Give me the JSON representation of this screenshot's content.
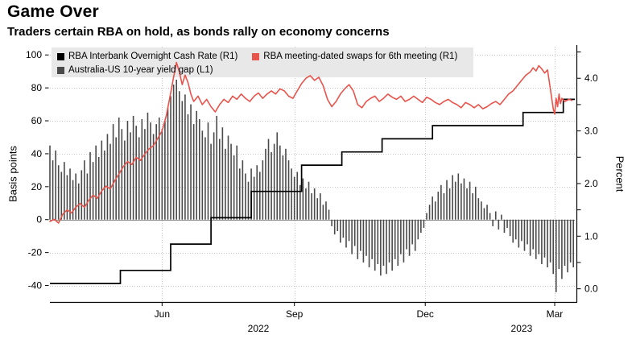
{
  "chart_data": {
    "type": "mixed",
    "title": "Game Over",
    "subtitle": "Traders certain RBA on hold, as bonds rally on economy concerns",
    "legend_position": "top-left",
    "grid": "dotted",
    "background": "#ffffff",
    "x_axis": {
      "tick_labels": [
        "Jun",
        "Sep",
        "Dec",
        "Mar"
      ],
      "tick_days": [
        78,
        170,
        261,
        351
      ],
      "year_labels": [
        {
          "label": "2022",
          "day": 145
        },
        {
          "label": "2023",
          "day": 328
        }
      ],
      "domain_days": [
        0,
        365
      ],
      "domain_note": "day 0 = mid-March 2022, day 365 = mid-March 2023"
    },
    "left_axis": {
      "label": "Basis points",
      "ticks": [
        100,
        80,
        60,
        40,
        20,
        0,
        -20,
        -40
      ],
      "range": [
        -50,
        105
      ]
    },
    "right_axis": {
      "label": "Percent",
      "ticks": [
        4.0,
        3.0,
        2.0,
        1.0,
        0.0
      ],
      "minor_step": 0.5,
      "range": [
        -0.25,
        4.6
      ]
    },
    "series": [
      {
        "name": "RBA Interbank Overnight Cash Rate (R1)",
        "type": "step",
        "axis": "right",
        "color": "#000000",
        "points": [
          [
            0,
            0.1
          ],
          [
            49,
            0.35
          ],
          [
            84,
            0.85
          ],
          [
            112,
            1.35
          ],
          [
            140,
            1.85
          ],
          [
            175,
            2.35
          ],
          [
            203,
            2.6
          ],
          [
            231,
            2.85
          ],
          [
            266,
            3.1
          ],
          [
            329,
            3.35
          ],
          [
            357,
            3.6
          ],
          [
            365,
            3.6
          ]
        ]
      },
      {
        "name": "RBA meeting-dated swaps for 6th meeting (R1)",
        "type": "line",
        "axis": "right",
        "color": "#e8544c",
        "points": [
          [
            0,
            1.28
          ],
          [
            3,
            1.32
          ],
          [
            6,
            1.25
          ],
          [
            9,
            1.42
          ],
          [
            12,
            1.5
          ],
          [
            15,
            1.44
          ],
          [
            18,
            1.55
          ],
          [
            21,
            1.62
          ],
          [
            24,
            1.55
          ],
          [
            27,
            1.68
          ],
          [
            30,
            1.78
          ],
          [
            33,
            1.72
          ],
          [
            36,
            1.86
          ],
          [
            39,
            1.95
          ],
          [
            42,
            1.9
          ],
          [
            45,
            2.05
          ],
          [
            48,
            2.18
          ],
          [
            51,
            2.32
          ],
          [
            54,
            2.42
          ],
          [
            57,
            2.36
          ],
          [
            60,
            2.5
          ],
          [
            63,
            2.44
          ],
          [
            66,
            2.56
          ],
          [
            69,
            2.66
          ],
          [
            72,
            2.72
          ],
          [
            75,
            2.86
          ],
          [
            78,
            3.0
          ],
          [
            81,
            3.3
          ],
          [
            84,
            3.72
          ],
          [
            86,
            4.02
          ],
          [
            88,
            4.3
          ],
          [
            90,
            4.12
          ],
          [
            92,
            3.88
          ],
          [
            94,
            4.06
          ],
          [
            96,
            3.92
          ],
          [
            98,
            3.7
          ],
          [
            100,
            3.56
          ],
          [
            103,
            3.66
          ],
          [
            106,
            3.5
          ],
          [
            109,
            3.6
          ],
          [
            112,
            3.46
          ],
          [
            115,
            3.36
          ],
          [
            118,
            3.5
          ],
          [
            121,
            3.6
          ],
          [
            124,
            3.54
          ],
          [
            127,
            3.66
          ],
          [
            130,
            3.6
          ],
          [
            133,
            3.7
          ],
          [
            136,
            3.62
          ],
          [
            139,
            3.56
          ],
          [
            142,
            3.66
          ],
          [
            145,
            3.72
          ],
          [
            148,
            3.62
          ],
          [
            151,
            3.7
          ],
          [
            154,
            3.76
          ],
          [
            157,
            3.7
          ],
          [
            160,
            3.8
          ],
          [
            163,
            3.76
          ],
          [
            166,
            3.66
          ],
          [
            169,
            3.62
          ],
          [
            172,
            3.76
          ],
          [
            175,
            3.9
          ],
          [
            178,
            4.0
          ],
          [
            181,
            4.05
          ],
          [
            184,
            3.96
          ],
          [
            187,
            4.02
          ],
          [
            190,
            3.86
          ],
          [
            193,
            3.6
          ],
          [
            196,
            3.46
          ],
          [
            199,
            3.56
          ],
          [
            202,
            3.7
          ],
          [
            205,
            3.8
          ],
          [
            208,
            3.88
          ],
          [
            211,
            3.76
          ],
          [
            214,
            3.5
          ],
          [
            217,
            3.44
          ],
          [
            220,
            3.56
          ],
          [
            223,
            3.62
          ],
          [
            226,
            3.66
          ],
          [
            229,
            3.56
          ],
          [
            232,
            3.62
          ],
          [
            235,
            3.7
          ],
          [
            238,
            3.64
          ],
          [
            241,
            3.6
          ],
          [
            244,
            3.66
          ],
          [
            247,
            3.56
          ],
          [
            250,
            3.6
          ],
          [
            253,
            3.66
          ],
          [
            256,
            3.6
          ],
          [
            259,
            3.54
          ],
          [
            262,
            3.64
          ],
          [
            265,
            3.6
          ],
          [
            268,
            3.54
          ],
          [
            271,
            3.5
          ],
          [
            274,
            3.56
          ],
          [
            277,
            3.6
          ],
          [
            280,
            3.54
          ],
          [
            283,
            3.5
          ],
          [
            286,
            3.44
          ],
          [
            289,
            3.54
          ],
          [
            292,
            3.5
          ],
          [
            295,
            3.44
          ],
          [
            298,
            3.5
          ],
          [
            301,
            3.42
          ],
          [
            304,
            3.46
          ],
          [
            307,
            3.52
          ],
          [
            310,
            3.56
          ],
          [
            313,
            3.5
          ],
          [
            316,
            3.6
          ],
          [
            319,
            3.7
          ],
          [
            322,
            3.76
          ],
          [
            325,
            3.86
          ],
          [
            328,
            3.96
          ],
          [
            331,
            4.06
          ],
          [
            334,
            4.12
          ],
          [
            336,
            4.2
          ],
          [
            338,
            4.14
          ],
          [
            340,
            4.24
          ],
          [
            342,
            4.18
          ],
          [
            344,
            4.1
          ],
          [
            346,
            4.16
          ],
          [
            348,
            3.8
          ],
          [
            350,
            3.42
          ],
          [
            351,
            3.32
          ],
          [
            352,
            3.62
          ],
          [
            353,
            3.46
          ],
          [
            354,
            3.7
          ],
          [
            355,
            3.52
          ],
          [
            356,
            3.62
          ],
          [
            358,
            3.56
          ],
          [
            361,
            3.6
          ],
          [
            363,
            3.58
          ]
        ]
      },
      {
        "name": "Australia-US 10-year yield gap (L1)",
        "type": "bar",
        "axis": "left",
        "color": "#4a4a4a",
        "start_day": 0,
        "day_step": 2,
        "values": [
          45,
          36,
          42,
          33,
          29,
          35,
          27,
          31,
          24,
          28,
          22,
          30,
          36,
          28,
          41,
          35,
          45,
          38,
          48,
          42,
          52,
          46,
          58,
          50,
          62,
          55,
          48,
          60,
          53,
          63,
          57,
          50,
          61,
          55,
          65,
          59,
          52,
          58,
          62,
          55,
          60,
          68,
          75,
          82,
          85,
          78,
          72,
          76,
          64,
          70,
          58,
          66,
          61,
          54,
          50,
          59,
          46,
          53,
          63,
          49,
          56,
          43,
          51,
          46,
          39,
          45,
          31,
          36,
          28,
          23,
          31,
          26,
          33,
          29,
          36,
          43,
          49,
          41,
          46,
          53,
          45,
          39,
          43,
          36,
          31,
          26,
          29,
          21,
          25,
          19,
          23,
          16,
          19,
          13,
          16,
          9,
          11,
          6,
          -4,
          -9,
          -7,
          -14,
          -11,
          -17,
          -13,
          -21,
          -16,
          -24,
          -19,
          -26,
          -22,
          -29,
          -24,
          -31,
          -27,
          -34,
          -28,
          -33,
          -26,
          -31,
          -24,
          -28,
          -21,
          -26,
          -18,
          -22,
          -15,
          -19,
          -12,
          -8,
          -5,
          4,
          9,
          14,
          11,
          17,
          21,
          16,
          24,
          19,
          27,
          23,
          28,
          22,
          25,
          19,
          23,
          16,
          20,
          13,
          11,
          7,
          9,
          4,
          -4,
          5,
          -6,
          3,
          -8,
          -5,
          -10,
          -14,
          -12,
          -17,
          -13,
          -19,
          -15,
          -22,
          -18,
          -24,
          -21,
          -27,
          -23,
          -29,
          -26,
          -33,
          -44,
          -30,
          -36,
          -28,
          -32,
          -26,
          -29
        ]
      }
    ]
  }
}
